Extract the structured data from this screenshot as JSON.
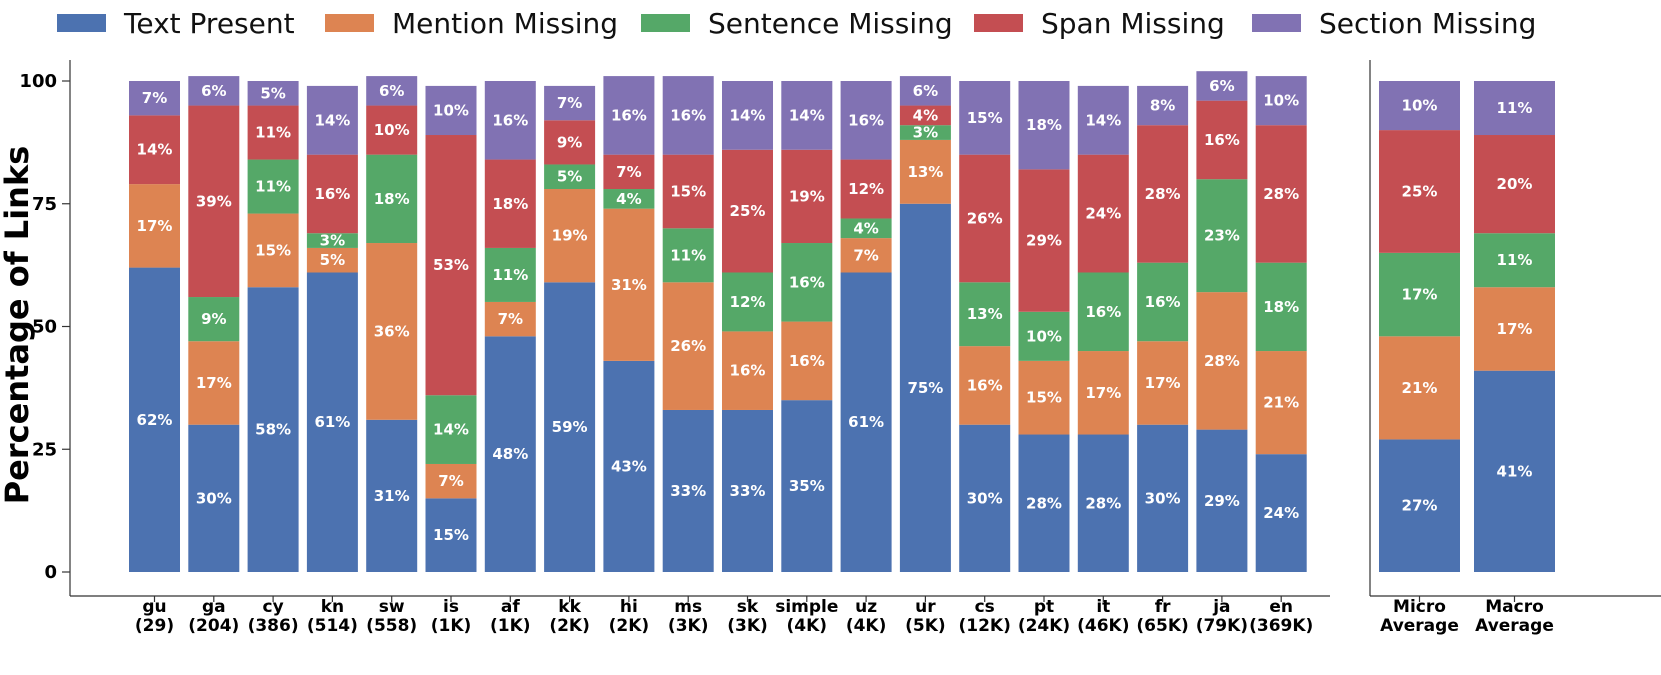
{
  "chart_data": {
    "type": "bar",
    "stacked": true,
    "ylabel": "Percentage of Links",
    "ylim": [
      0,
      100
    ],
    "yticks": [
      0,
      25,
      50,
      75,
      100
    ],
    "legend_placement": "top",
    "series": [
      {
        "name": "Text Present",
        "color": "#4c72b0"
      },
      {
        "name": "Mention Missing",
        "color": "#dd8452"
      },
      {
        "name": "Sentence Missing",
        "color": "#55a868"
      },
      {
        "name": "Span Missing",
        "color": "#c44e52"
      },
      {
        "name": "Section Missing",
        "color": "#8172b3"
      }
    ],
    "panels": [
      {
        "categories": [
          {
            "name": "gu",
            "count": "(29)",
            "values": [
              62,
              17,
              0,
              14,
              7
            ],
            "labels": [
              "62%",
              "17%",
              "",
              "14%",
              "7%"
            ]
          },
          {
            "name": "ga",
            "count": "(204)",
            "values": [
              30,
              17,
              9,
              39,
              6
            ],
            "labels": [
              "30%",
              "17%",
              "9%",
              "39%",
              "6%"
            ]
          },
          {
            "name": "cy",
            "count": "(386)",
            "values": [
              58,
              15,
              11,
              11,
              5
            ],
            "labels": [
              "58%",
              "15%",
              "11%",
              "11%",
              "5%"
            ]
          },
          {
            "name": "kn",
            "count": "(514)",
            "values": [
              61,
              5,
              3,
              16,
              14
            ],
            "labels": [
              "61%",
              "5%",
              "3%",
              "16%",
              "14%"
            ]
          },
          {
            "name": "sw",
            "count": "(558)",
            "values": [
              31,
              36,
              18,
              10,
              6
            ],
            "labels": [
              "31%",
              "36%",
              "18%",
              "10%",
              "6%"
            ]
          },
          {
            "name": "is",
            "count": "(1K)",
            "values": [
              15,
              7,
              14,
              53,
              10
            ],
            "labels": [
              "15%",
              "7%",
              "14%",
              "53%",
              "10%"
            ]
          },
          {
            "name": "af",
            "count": "(1K)",
            "values": [
              48,
              7,
              11,
              18,
              16
            ],
            "labels": [
              "48%",
              "7%",
              "11%",
              "18%",
              "16%"
            ]
          },
          {
            "name": "kk",
            "count": "(2K)",
            "values": [
              59,
              19,
              5,
              9,
              7
            ],
            "labels": [
              "59%",
              "19%",
              "5%",
              "9%",
              "7%"
            ]
          },
          {
            "name": "hi",
            "count": "(2K)",
            "values": [
              43,
              31,
              4,
              7,
              16
            ],
            "labels": [
              "43%",
              "31%",
              "4%",
              "7%",
              "16%"
            ]
          },
          {
            "name": "ms",
            "count": "(3K)",
            "values": [
              33,
              26,
              11,
              15,
              16
            ],
            "labels": [
              "33%",
              "26%",
              "11%",
              "15%",
              "16%"
            ]
          },
          {
            "name": "sk",
            "count": "(3K)",
            "values": [
              33,
              16,
              12,
              25,
              14
            ],
            "labels": [
              "33%",
              "16%",
              "12%",
              "25%",
              "14%"
            ]
          },
          {
            "name": "simple",
            "count": "(4K)",
            "values": [
              35,
              16,
              16,
              19,
              14
            ],
            "labels": [
              "35%",
              "16%",
              "16%",
              "19%",
              "14%"
            ]
          },
          {
            "name": "uz",
            "count": "(4K)",
            "values": [
              61,
              7,
              4,
              12,
              16
            ],
            "labels": [
              "61%",
              "7%",
              "4%",
              "12%",
              "16%"
            ]
          },
          {
            "name": "ur",
            "count": "(5K)",
            "values": [
              75,
              13,
              3,
              4,
              6
            ],
            "labels": [
              "75%",
              "13%",
              "3%",
              "4%",
              "6%"
            ]
          },
          {
            "name": "cs",
            "count": "(12K)",
            "values": [
              30,
              16,
              13,
              26,
              15
            ],
            "labels": [
              "30%",
              "16%",
              "13%",
              "26%",
              "15%"
            ]
          },
          {
            "name": "pt",
            "count": "(24K)",
            "values": [
              28,
              15,
              10,
              29,
              18
            ],
            "labels": [
              "28%",
              "15%",
              "10%",
              "29%",
              "18%"
            ]
          },
          {
            "name": "it",
            "count": "(46K)",
            "values": [
              28,
              17,
              16,
              24,
              14
            ],
            "labels": [
              "28%",
              "17%",
              "16%",
              "24%",
              "14%"
            ]
          },
          {
            "name": "fr",
            "count": "(65K)",
            "values": [
              30,
              17,
              16,
              28,
              8
            ],
            "labels": [
              "30%",
              "17%",
              "16%",
              "28%",
              "8%"
            ]
          },
          {
            "name": "ja",
            "count": "(79K)",
            "values": [
              29,
              28,
              23,
              16,
              6
            ],
            "labels": [
              "29%",
              "28%",
              "23%",
              "16%",
              "6%"
            ]
          },
          {
            "name": "en",
            "count": "(369K)",
            "values": [
              24,
              21,
              18,
              28,
              10
            ],
            "labels": [
              "24%",
              "21%",
              "18%",
              "28%",
              "10%"
            ]
          }
        ]
      },
      {
        "categories": [
          {
            "name": "Micro",
            "count": "Average",
            "values": [
              27,
              21,
              17,
              25,
              10
            ],
            "labels": [
              "27%",
              "21%",
              "17%",
              "25%",
              "10%"
            ]
          },
          {
            "name": "Macro",
            "count": "Average",
            "values": [
              41,
              17,
              11,
              20,
              11
            ],
            "labels": [
              "41%",
              "17%",
              "11%",
              "20%",
              "11%"
            ]
          }
        ]
      }
    ]
  }
}
